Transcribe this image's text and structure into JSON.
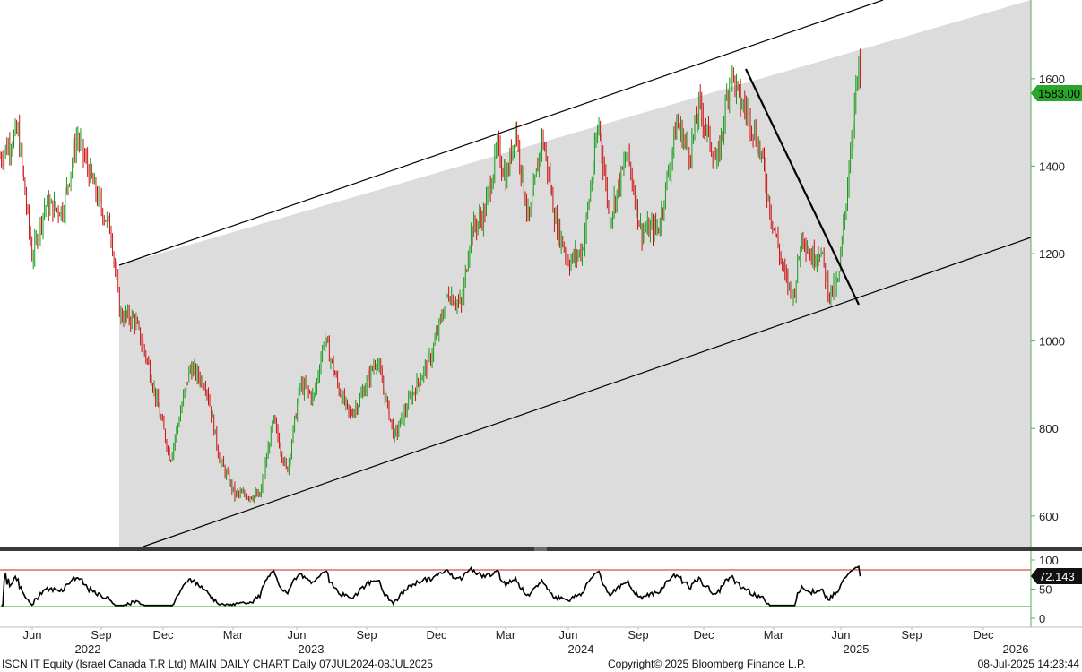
{
  "chart_data": [
    {
      "type": "candlestick",
      "title": "",
      "x_axis": {
        "month_labels": [
          "Jun",
          "Sep",
          "Dec",
          "Mar",
          "Jun",
          "Sep",
          "Dec",
          "Mar",
          "Jun",
          "Sep",
          "Dec",
          "Mar",
          "Jun",
          "Sep",
          "Dec"
        ],
        "year_labels": [
          "2022",
          "2023",
          "2024",
          "2025",
          "2026"
        ]
      },
      "y_axis": {
        "ylim": [
          530,
          1780
        ],
        "ticks": [
          600,
          800,
          1000,
          1200,
          1400,
          1600
        ],
        "side": "right"
      },
      "last_price": "1583.00",
      "colors": {
        "up": "#1a9a1a",
        "down": "#cc1111",
        "channel_fill": "#dcdcdc",
        "price_badge": "#2aa52a"
      },
      "price_path": [
        [
          0,
          1420
        ],
        [
          20,
          1480
        ],
        [
          36,
          1190
        ],
        [
          50,
          1310
        ],
        [
          70,
          1300
        ],
        [
          86,
          1470
        ],
        [
          110,
          1320
        ],
        [
          124,
          1250
        ],
        [
          134,
          1060
        ],
        [
          150,
          1050
        ],
        [
          165,
          950
        ],
        [
          190,
          730
        ],
        [
          212,
          940
        ],
        [
          230,
          900
        ],
        [
          245,
          730
        ],
        [
          262,
          650
        ],
        [
          290,
          645
        ],
        [
          305,
          820
        ],
        [
          320,
          700
        ],
        [
          335,
          900
        ],
        [
          350,
          870
        ],
        [
          362,
          1010
        ],
        [
          378,
          890
        ],
        [
          390,
          830
        ],
        [
          400,
          860
        ],
        [
          420,
          960
        ],
        [
          440,
          780
        ],
        [
          460,
          880
        ],
        [
          480,
          960
        ],
        [
          500,
          1110
        ],
        [
          515,
          1080
        ],
        [
          525,
          1250
        ],
        [
          540,
          1290
        ],
        [
          555,
          1440
        ],
        [
          565,
          1370
        ],
        [
          575,
          1490
        ],
        [
          590,
          1270
        ],
        [
          605,
          1470
        ],
        [
          620,
          1270
        ],
        [
          635,
          1180
        ],
        [
          650,
          1210
        ],
        [
          668,
          1500
        ],
        [
          680,
          1280
        ],
        [
          700,
          1430
        ],
        [
          715,
          1250
        ],
        [
          735,
          1260
        ],
        [
          755,
          1500
        ],
        [
          770,
          1430
        ],
        [
          780,
          1540
        ],
        [
          800,
          1400
        ],
        [
          815,
          1620
        ],
        [
          825,
          1550
        ],
        [
          835,
          1520
        ],
        [
          850,
          1420
        ],
        [
          860,
          1290
        ],
        [
          875,
          1150
        ],
        [
          885,
          1100
        ],
        [
          895,
          1250
        ],
        [
          905,
          1190
        ],
        [
          915,
          1210
        ],
        [
          925,
          1110
        ],
        [
          935,
          1130
        ],
        [
          945,
          1350
        ],
        [
          952,
          1520
        ],
        [
          958,
          1620
        ],
        [
          960,
          1583
        ]
      ]
    },
    {
      "type": "line",
      "title": "",
      "y_axis": {
        "ylim": [
          0,
          100
        ],
        "ticks": [
          0,
          50,
          100
        ],
        "side": "right"
      },
      "reference_lines": [
        70,
        30
      ],
      "last_value": "72.143"
    }
  ],
  "footer": {
    "left": "ISCN IT Equity (Israel Canada T.R Ltd) MAIN DAILY CHART  Daily 07JUL2024-08JUL2025",
    "center": "Copyright© 2025 Bloomberg Finance L.P.",
    "right": "08-Jul-2025 14:23:44"
  }
}
